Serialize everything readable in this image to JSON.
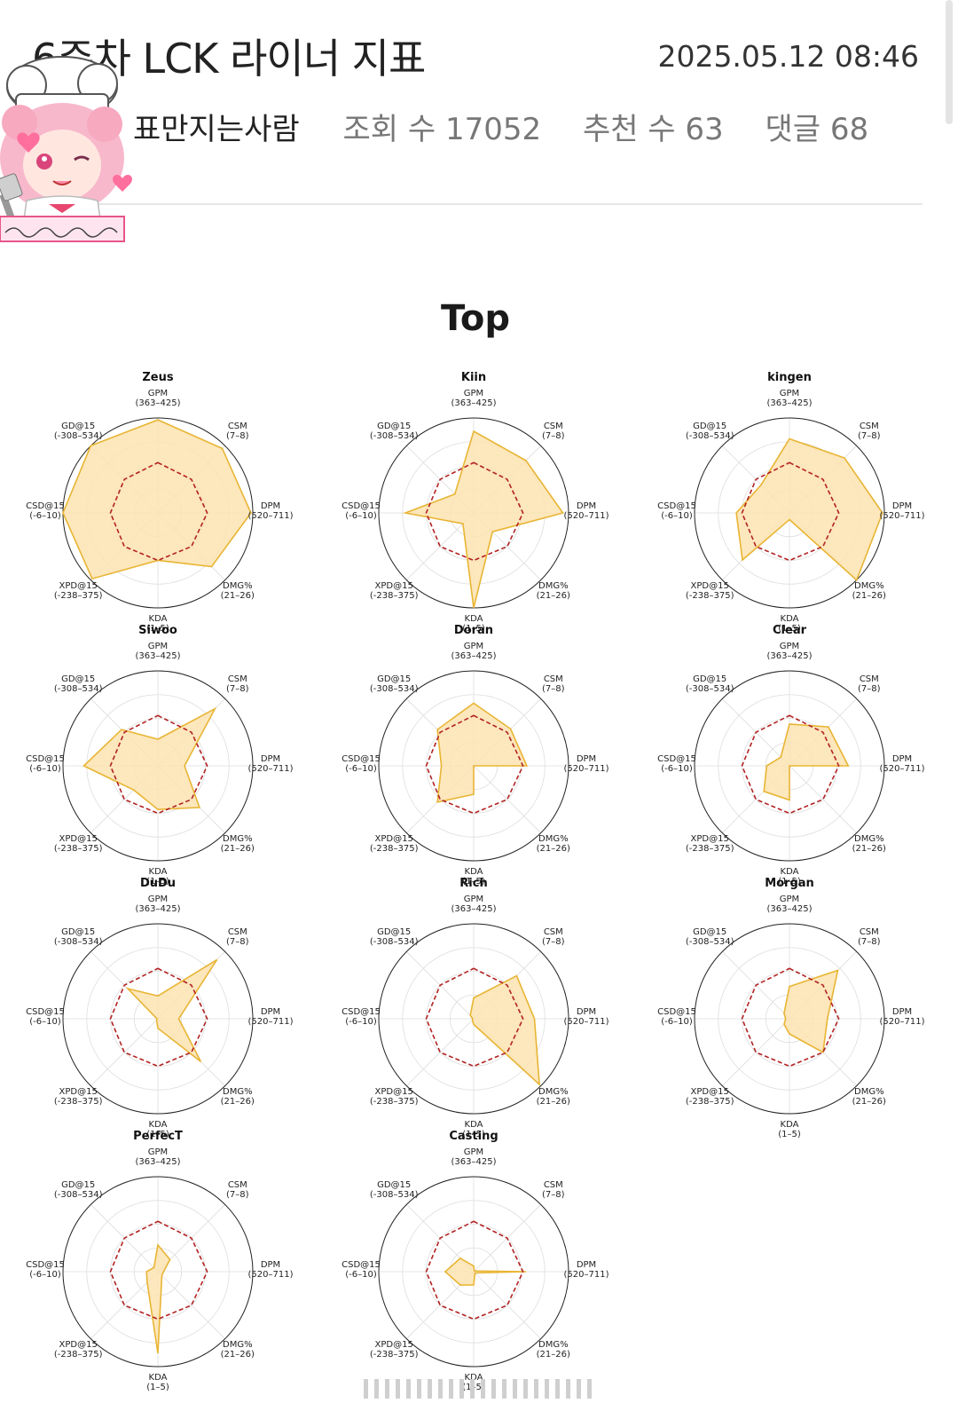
{
  "post": {
    "title": "6주차 LCK 라이너 지표",
    "datetime": "2025.05.12 08:46",
    "author": "표만지는사람",
    "views_label": "조회 수 17052",
    "recommend_label": "추천 수 63",
    "comments_label": "댓글 68"
  },
  "colors": {
    "fill": "#fde3b0",
    "stroke": "#e8b534",
    "avg": "#b22222",
    "grid": "#dddddd",
    "outer": "#222222"
  },
  "chart_data": {
    "type": "radar",
    "title": "Top",
    "axes": [
      {
        "name": "GPM",
        "range": "(363–425)"
      },
      {
        "name": "CSM",
        "range": "(7–8)"
      },
      {
        "name": "DPM",
        "range": "(520–711)"
      },
      {
        "name": "DMG%",
        "range": "(21–26)"
      },
      {
        "name": "KDA",
        "range": "(1–5)"
      },
      {
        "name": "XPD@15",
        "range": "(-238–375)"
      },
      {
        "name": "CSD@15",
        "range": "(-6–10)"
      },
      {
        "name": "GD@15",
        "range": "(-308–534)"
      }
    ],
    "average": [
      0.53,
      0.5,
      0.52,
      0.5,
      0.5,
      0.5,
      0.5,
      0.5
    ],
    "players": [
      {
        "name": "Zeus",
        "values": [
          0.98,
          0.96,
          0.98,
          0.8,
          0.5,
          0.98,
          1.0,
          1.0
        ]
      },
      {
        "name": "Kiin",
        "values": [
          0.86,
          0.78,
          0.94,
          0.28,
          1.0,
          0.16,
          0.72,
          0.28
        ]
      },
      {
        "name": "kingen",
        "values": [
          0.78,
          0.82,
          0.98,
          1.0,
          0.07,
          0.7,
          0.56,
          0.42
        ]
      },
      {
        "name": "Siwoo",
        "values": [
          0.28,
          0.85,
          0.28,
          0.62,
          0.46,
          0.36,
          0.78,
          0.54
        ]
      },
      {
        "name": "Doran",
        "values": [
          0.66,
          0.55,
          0.56,
          0.0,
          0.3,
          0.54,
          0.34,
          0.54
        ]
      },
      {
        "name": "Clear",
        "values": [
          0.44,
          0.58,
          0.62,
          0.0,
          0.36,
          0.38,
          0.24,
          0.13
        ]
      },
      {
        "name": "DuDu",
        "values": [
          0.24,
          0.88,
          0.22,
          0.64,
          0.1,
          0.02,
          0.01,
          0.45
        ]
      },
      {
        "name": "Rich",
        "values": [
          0.22,
          0.64,
          0.64,
          0.98,
          0.06,
          0.02,
          0.01,
          0.05
        ]
      },
      {
        "name": "Morgan",
        "values": [
          0.34,
          0.72,
          0.4,
          0.5,
          0.16,
          0.08,
          0.04,
          0.08
        ]
      },
      {
        "name": "PerfecT",
        "values": [
          0.28,
          0.18,
          0.06,
          0.06,
          0.86,
          0.16,
          0.12,
          0.06
        ]
      },
      {
        "name": "Casting",
        "values": [
          0.06,
          0.01,
          0.55,
          0.02,
          0.14,
          0.2,
          0.3,
          0.2
        ]
      }
    ]
  }
}
